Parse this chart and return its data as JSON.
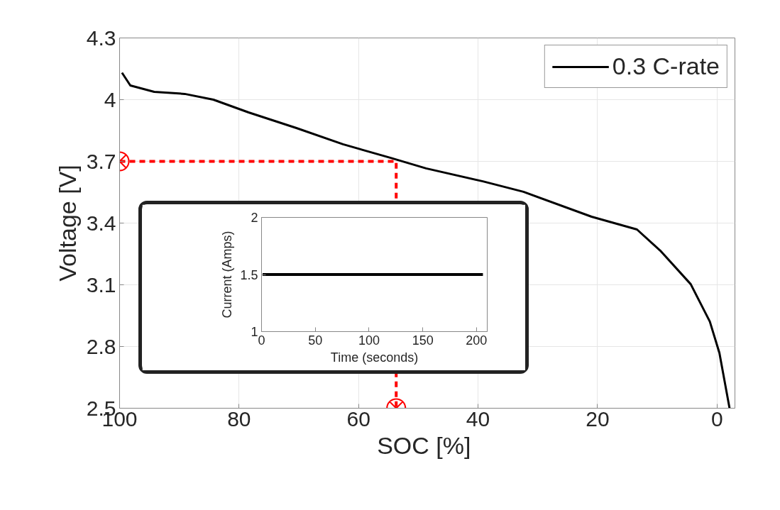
{
  "chart_data": [
    {
      "type": "line",
      "xlabel": "SOC  [%]",
      "ylabel": "Voltage [V]",
      "xlim": [
        100,
        -3
      ],
      "xticks": [
        100,
        80,
        60,
        40,
        20,
        0
      ],
      "ylim": [
        2.5,
        4.3
      ],
      "yticks": [
        2.5,
        2.8,
        3.1,
        3.4,
        3.7,
        4,
        4.3
      ],
      "grid": true,
      "legend": "top right",
      "series": [
        {
          "name": "0.3 C-rate",
          "color": "#000000",
          "x": [
            99.6,
            98.2,
            94.2,
            89.1,
            84.3,
            78.4,
            70.4,
            62.6,
            54.6,
            48.7,
            39.2,
            32.4,
            21.0,
            13.4,
            9.5,
            4.4,
            1.2,
            -0.4,
            -2.1
          ],
          "values": [
            4.131,
            4.069,
            4.038,
            4.028,
            4.0,
            3.938,
            3.862,
            3.783,
            3.717,
            3.666,
            3.603,
            3.552,
            3.431,
            3.369,
            3.266,
            3.103,
            2.921,
            2.769,
            2.5
          ]
        },
        {
          "type": "line",
          "line_style": "dashed",
          "color": "#ff0000",
          "x": [
            100,
            53.7,
            53.7
          ],
          "values": [
            3.7,
            3.7,
            2.5
          ]
        },
        {
          "type": "scatter",
          "marker": "circle",
          "color": "#ff0000",
          "x": [
            100,
            53.7
          ],
          "values": [
            3.7,
            2.5
          ]
        }
      ]
    },
    {
      "type": "line",
      "xlabel": "Time (seconds)",
      "ylabel": "Current (Amps)",
      "xlim": [
        0,
        210
      ],
      "xticks": [
        0,
        50,
        100,
        150,
        200
      ],
      "ylim": [
        1,
        2
      ],
      "yticks": [
        1,
        1.5,
        2
      ],
      "grid": false,
      "series": [
        {
          "color": "#000000",
          "x": [
            1,
            206
          ],
          "values": [
            1.5,
            1.5
          ]
        }
      ]
    }
  ]
}
